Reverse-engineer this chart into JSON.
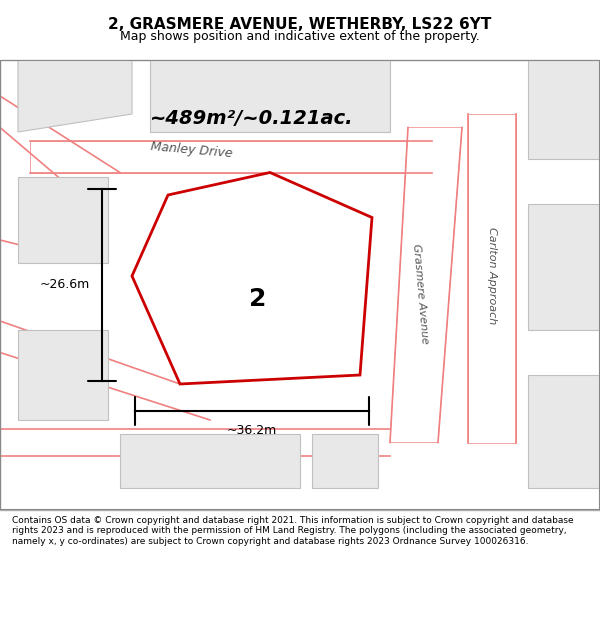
{
  "title": "2, GRASMERE AVENUE, WETHERBY, LS22 6YT",
  "subtitle": "Map shows position and indicative extent of the property.",
  "area_text": "~489m²/~0.121ac.",
  "width_text": "~36.2m",
  "height_text": "~26.6m",
  "plot_number": "2",
  "road_label_manley": "Manley Drive",
  "road_label_carlton": "Carlton Approach",
  "road_label_grasmere": "Grasmere Avenue",
  "bg_color": "#f0f0f0",
  "map_bg": "#f5f5f5",
  "block_color": "#e8e8e8",
  "block_outline": "#c8c8c8",
  "road_color": "#ffffff",
  "road_outline": "#f08080",
  "highlight_fill": "#ffffff",
  "highlight_outline": "#cc0000",
  "footer_text": "Contains OS data © Crown copyright and database right 2021. This information is subject to Crown copyright and database rights 2023 and is reproduced with the permission of HM Land Registry. The polygons (including the associated geometry, namely x, y co-ordinates) are subject to Crown copyright and database rights 2023 Ordnance Survey 100026316.",
  "figsize": [
    6.0,
    6.25
  ],
  "dpi": 100
}
